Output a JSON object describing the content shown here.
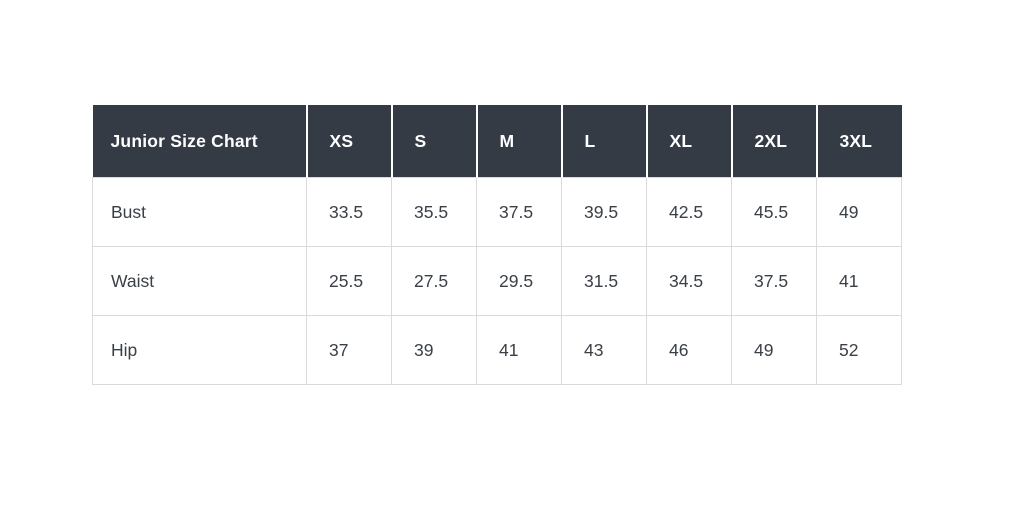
{
  "chart_data": {
    "type": "table",
    "title": "Junior Size Chart",
    "columns": [
      "XS",
      "S",
      "M",
      "L",
      "XL",
      "2XL",
      "3XL"
    ],
    "rows": [
      {
        "label": "Bust",
        "values": [
          "33.5",
          "35.5",
          "37.5",
          "39.5",
          "42.5",
          "45.5",
          "49"
        ]
      },
      {
        "label": "Waist",
        "values": [
          "25.5",
          "27.5",
          "29.5",
          "31.5",
          "34.5",
          "37.5",
          "41"
        ]
      },
      {
        "label": "Hip",
        "values": [
          "37",
          "39",
          "41",
          "43",
          "46",
          "49",
          "52"
        ]
      }
    ],
    "layout": {
      "header_row": true,
      "first_column_is_label": true,
      "grid": "on"
    }
  },
  "colors": {
    "header_bg": "#343b44",
    "header_text": "#ffffff",
    "body_text": "#3a4047",
    "border": "#dadada",
    "page_bg": "#ffffff"
  }
}
